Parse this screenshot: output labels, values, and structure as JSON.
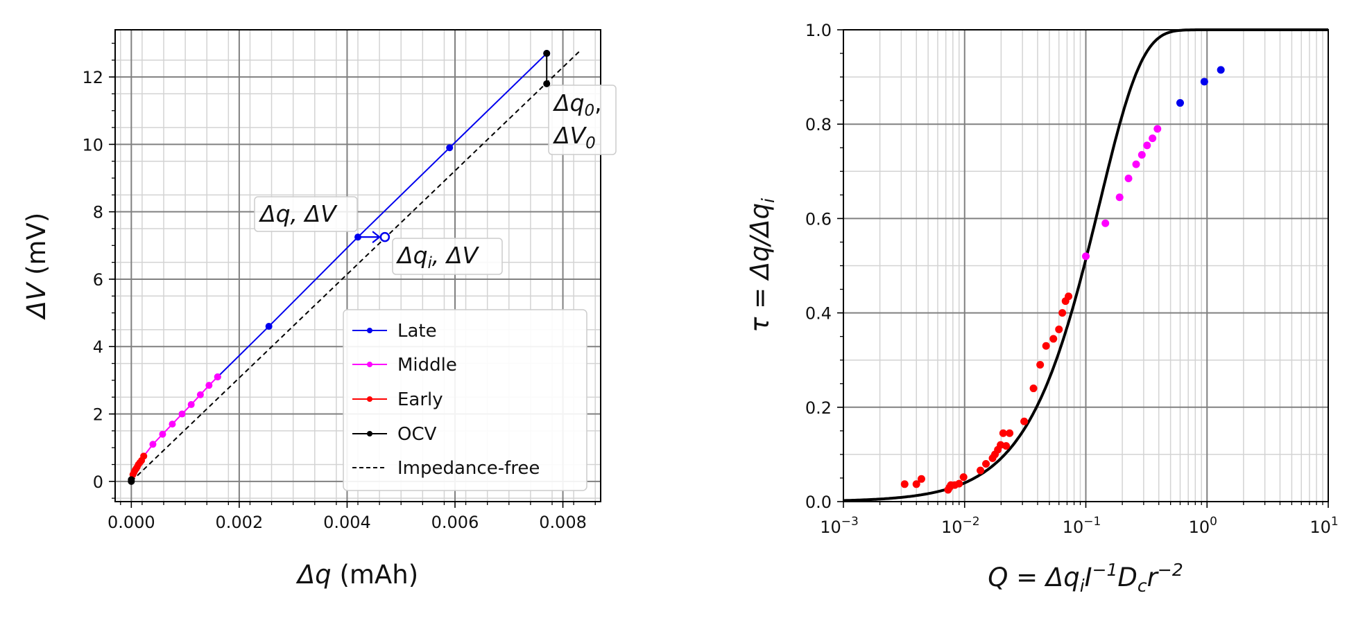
{
  "colors": {
    "late": "#0000ee",
    "middle": "#ff00ff",
    "early": "#ff0000",
    "ocv": "#000000",
    "grid_major": "#808080",
    "grid_minor": "#d3d3d3"
  },
  "chart_data": [
    {
      "type": "line",
      "xlabel_math": "Δq",
      "xlabel_unit": " (mAh)",
      "ylabel_math": "ΔV",
      "ylabel_unit": " (mV)",
      "xlim": [
        -0.0003,
        0.0087
      ],
      "ylim": [
        -0.6,
        13.4
      ],
      "grid": true,
      "xticks": [
        0.0,
        0.002,
        0.004,
        0.006,
        0.008
      ],
      "xtick_labels": [
        "0.000",
        "0.002",
        "0.004",
        "0.006",
        "0.008"
      ],
      "yticks": [
        0,
        2,
        4,
        6,
        8,
        10,
        12
      ],
      "ytick_labels": [
        "0",
        "2",
        "4",
        "6",
        "8",
        "10",
        "12"
      ],
      "legend_position": "lower right",
      "series": [
        {
          "name": "Late",
          "color": "#0000ee",
          "style": "line-dots",
          "x": [
            0.0016,
            0.00255,
            0.0042,
            0.0059,
            0.0077
          ],
          "y": [
            3.1,
            4.6,
            7.25,
            9.9,
            12.7
          ]
        },
        {
          "name": "Middle",
          "color": "#ff00ff",
          "style": "line-dots",
          "x": [
            0.00023,
            0.0004,
            0.00058,
            0.00076,
            0.00094,
            0.00111,
            0.00128,
            0.00144,
            0.0016
          ],
          "y": [
            0.75,
            1.1,
            1.4,
            1.7,
            2.0,
            2.28,
            2.57,
            2.85,
            3.1
          ]
        },
        {
          "name": "Early",
          "color": "#ff0000",
          "style": "line-dots",
          "x": [
            3e-05,
            5e-05,
            7e-05,
            9e-05,
            0.00011,
            0.00013,
            0.00016,
            0.00019,
            0.00023
          ],
          "y": [
            0.2,
            0.27,
            0.33,
            0.38,
            0.43,
            0.5,
            0.56,
            0.62,
            0.75
          ]
        },
        {
          "name": "OCV",
          "color": "#000000",
          "style": "line-dots",
          "segments": [
            {
              "x": [
                0.0,
                0.0
              ],
              "y": [
                0.0,
                0.05
              ]
            },
            {
              "x": [
                0.0077,
                0.0077
              ],
              "y": [
                11.8,
                12.7
              ]
            }
          ]
        },
        {
          "name": "Impedance-free",
          "color": "#000000",
          "style": "dashed",
          "x": [
            0.0,
            0.0083
          ],
          "y": [
            0.0,
            12.75
          ]
        }
      ],
      "markers": [
        {
          "type": "open-circle",
          "x": 0.0047,
          "y": 7.25,
          "color": "#0000ee"
        }
      ],
      "arrows": [
        {
          "from": [
            0.0042,
            7.25
          ],
          "to": [
            0.0046,
            7.25
          ],
          "color": "#0000ee"
        }
      ],
      "annotations": [
        {
          "id": "a1",
          "math": "Δq, ΔV",
          "x": 0.0031,
          "y": 8.0
        },
        {
          "id": "a2",
          "math": "Δq",
          "sub": "i",
          "rest": ", ΔV",
          "x": 0.0049,
          "y": 6.6
        },
        {
          "id": "a3",
          "line1": "Δq",
          "sub1": "0",
          "tail1": ",",
          "line2": "ΔV",
          "sub2": "0",
          "x": 0.00785,
          "y": 10.8
        }
      ]
    },
    {
      "type": "scatter",
      "xscale": "log",
      "xlim": [
        0.001,
        10
      ],
      "ylim": [
        0.0,
        1.0
      ],
      "xlabel": "Q = Δq_i I^-1 D_c r^-2",
      "ylabel": "τ = Δq/Δq_i",
      "grid": true,
      "xtick_base": "10",
      "xtick_exponents": [
        "−3",
        "−2",
        "−1",
        "0",
        "1"
      ],
      "yticks": [
        0.0,
        0.2,
        0.4,
        0.6,
        0.8,
        1.0
      ],
      "ytick_labels": [
        "0.0",
        "0.2",
        "0.4",
        "0.6",
        "0.8",
        "1.0"
      ],
      "curve": {
        "color": "#000000",
        "model": "1 - exp(-(x/0.13)^1.25)"
      },
      "series": [
        {
          "name": "Early",
          "color": "#ff0000",
          "x": [
            0.0032,
            0.004,
            0.0044,
            0.0073,
            0.0075,
            0.0077,
            0.0083,
            0.009,
            0.0098,
            0.0135,
            0.015,
            0.017,
            0.0178,
            0.0188,
            0.0198,
            0.0208,
            0.022,
            0.0235,
            0.031,
            0.037,
            0.042,
            0.047,
            0.054,
            0.06,
            0.064,
            0.068,
            0.072
          ],
          "y": [
            0.037,
            0.037,
            0.048,
            0.025,
            0.03,
            0.035,
            0.035,
            0.038,
            0.052,
            0.066,
            0.08,
            0.092,
            0.1,
            0.11,
            0.12,
            0.145,
            0.118,
            0.145,
            0.17,
            0.24,
            0.29,
            0.33,
            0.345,
            0.365,
            0.4,
            0.425,
            0.435
          ]
        },
        {
          "name": "Middle",
          "color": "#ff00ff",
          "x": [
            0.1,
            0.145,
            0.19,
            0.225,
            0.26,
            0.29,
            0.32,
            0.355,
            0.39
          ],
          "y": [
            0.52,
            0.59,
            0.645,
            0.685,
            0.715,
            0.735,
            0.755,
            0.77,
            0.79
          ]
        },
        {
          "name": "Late",
          "color": "#0000ee",
          "x": [
            0.6,
            0.95,
            1.3
          ],
          "y": [
            0.845,
            0.89,
            0.915
          ]
        }
      ]
    }
  ]
}
